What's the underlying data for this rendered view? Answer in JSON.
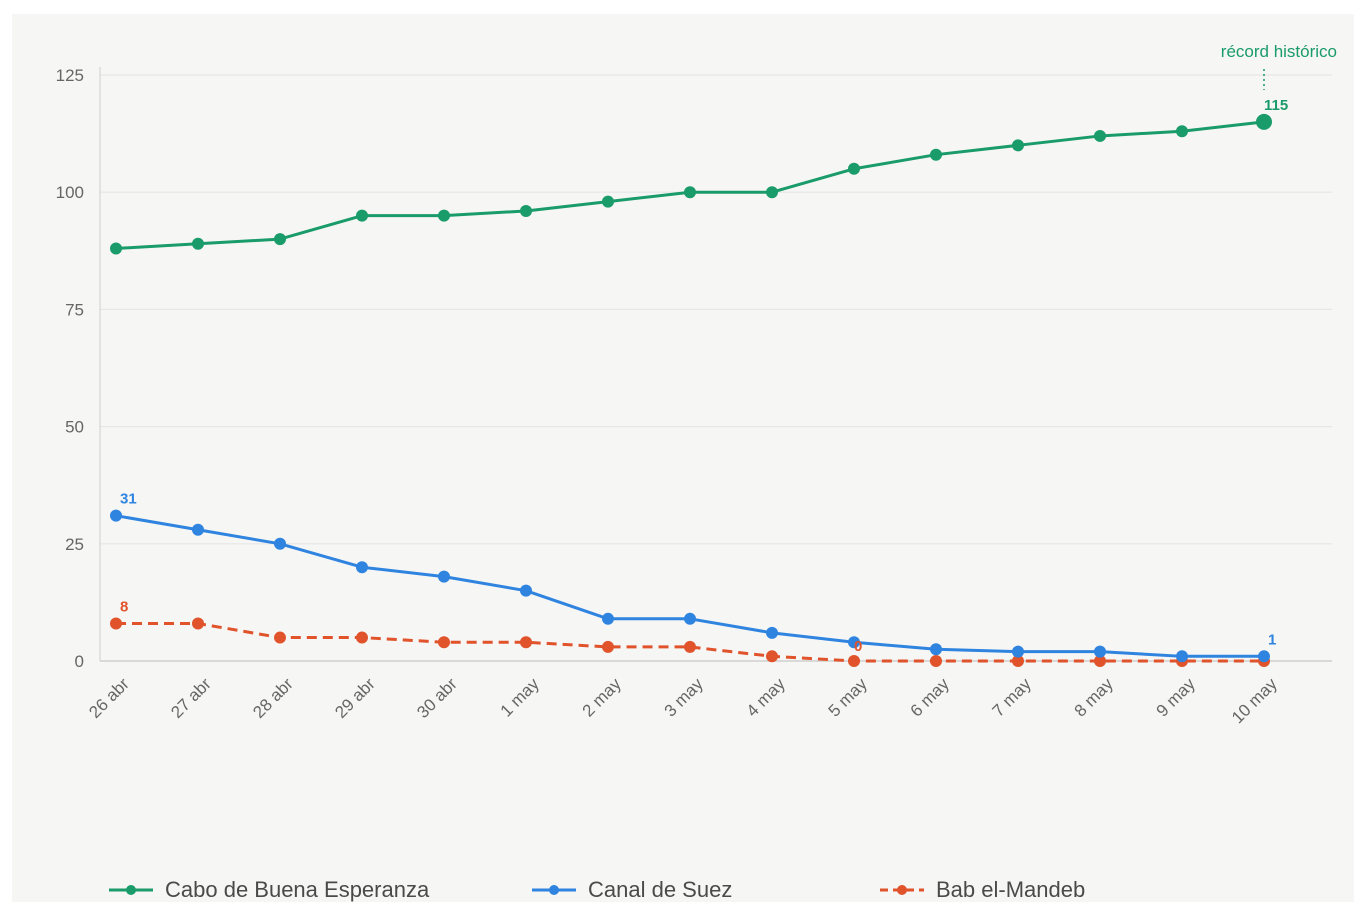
{
  "chart_data": {
    "type": "line",
    "categories": [
      "26 abr",
      "27 abr",
      "28 abr",
      "29 abr",
      "30 abr",
      "1 may",
      "2 may",
      "3 may",
      "4 may",
      "5 may",
      "6 may",
      "7 may",
      "8 may",
      "9 may",
      "10 may"
    ],
    "y_ticks": [
      "0",
      "25",
      "50",
      "75",
      "100",
      "125"
    ],
    "ylim": [
      0,
      125
    ],
    "grid": true,
    "legend_position": "bottom",
    "series": [
      {
        "name": "Cabo de Buena Esperanza",
        "color": "#1a9b6a",
        "dash": false,
        "values": [
          88,
          89,
          90,
          95,
          95,
          96,
          98,
          100,
          100,
          105,
          108,
          110,
          112,
          113,
          115
        ]
      },
      {
        "name": "Canal de Suez",
        "color": "#2f84e0",
        "dash": false,
        "values": [
          31,
          28,
          25,
          20,
          18,
          15,
          9,
          9,
          6,
          4,
          2.5,
          2,
          2,
          1,
          1
        ]
      },
      {
        "name": "Bab el-Mandeb",
        "color": "#e0532b",
        "dash": true,
        "values": [
          8,
          8,
          5,
          5,
          4,
          4,
          3,
          3,
          1,
          0,
          0,
          0,
          0,
          0,
          0
        ]
      }
    ],
    "point_labels": [
      {
        "series": 0,
        "index": 14,
        "text": "115"
      },
      {
        "series": 1,
        "index": 0,
        "text": "31"
      },
      {
        "series": 1,
        "index": 14,
        "text": "1"
      },
      {
        "series": 2,
        "index": 0,
        "text": "8"
      },
      {
        "series": 2,
        "index": 9,
        "text": "0"
      }
    ],
    "annotation": {
      "text": "récord histórico",
      "series": 0,
      "index": 14,
      "color": "#1a9b6a"
    }
  },
  "legend": [
    {
      "label": "Cabo de Buena Esperanza",
      "color": "#1a9b6a",
      "dash": false
    },
    {
      "label": "Canal de Suez",
      "color": "#2f84e0",
      "dash": false
    },
    {
      "label": "Bab el-Mandeb",
      "color": "#e0532b",
      "dash": true
    }
  ]
}
